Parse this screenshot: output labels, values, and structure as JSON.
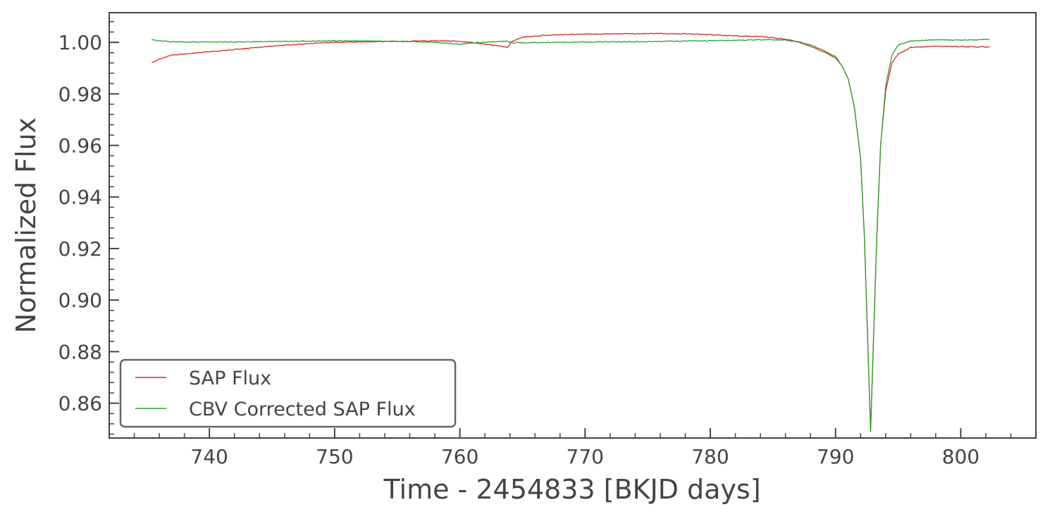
{
  "chart_data": {
    "type": "line",
    "title": "",
    "xlabel": "Time - 2454833 [BKJD days]",
    "ylabel": "Normalized Flux",
    "xlim": [
      732,
      806
    ],
    "ylim": [
      0.8465,
      1.0115
    ],
    "x_ticks": [
      740,
      750,
      760,
      770,
      780,
      790,
      800
    ],
    "x_tick_labels": [
      "740",
      "750",
      "760",
      "770",
      "780",
      "790",
      "800"
    ],
    "y_ticks": [
      0.86,
      0.88,
      0.9,
      0.92,
      0.94,
      0.96,
      0.98,
      1.0
    ],
    "y_tick_labels": [
      "0.86",
      "0.88",
      "0.90",
      "0.92",
      "0.94",
      "0.96",
      "0.98",
      "1.00"
    ],
    "grid": false,
    "legend_position": "lower-left",
    "series": [
      {
        "name": "SAP Flux",
        "color": "#d62728",
        "x": [
          735.4,
          736.0,
          737.0,
          738.0,
          740.0,
          742.0,
          745.0,
          748.0,
          750.0,
          752.0,
          754.0,
          756.0,
          758.0,
          760.0,
          761.0,
          762.0,
          763.0,
          763.8,
          764.2,
          765.0,
          767.0,
          770.0,
          773.0,
          776.0,
          779.0,
          782.0,
          784.0,
          785.0,
          786.0,
          787.0,
          788.0,
          789.0,
          790.0,
          790.5,
          791.0,
          791.5,
          792.0,
          792.3,
          792.6,
          792.8,
          793.0,
          793.3,
          793.6,
          794.0,
          794.5,
          795.0,
          796.0,
          798.0,
          800.0,
          802.3
        ],
        "y": [
          0.992,
          0.9935,
          0.995,
          0.9955,
          0.9963,
          0.9972,
          0.9985,
          0.9995,
          1.0,
          1.0002,
          1.0003,
          1.0004,
          1.0006,
          1.0004,
          1.0,
          0.9993,
          0.9987,
          0.998,
          1.0005,
          1.002,
          1.0028,
          1.0032,
          1.0033,
          1.0034,
          1.0032,
          1.0025,
          1.0022,
          1.0018,
          1.0012,
          1.0002,
          0.9985,
          0.9965,
          0.994,
          0.991,
          0.986,
          0.975,
          0.955,
          0.925,
          0.88,
          0.849,
          0.88,
          0.925,
          0.96,
          0.981,
          0.992,
          0.9955,
          0.998,
          0.9985,
          0.9983,
          0.9982
        ]
      },
      {
        "name": "CBV Corrected SAP Flux",
        "color": "#2ca02c",
        "x": [
          735.4,
          736.0,
          737.0,
          740.0,
          743.0,
          746.0,
          750.0,
          753.0,
          756.0,
          758.0,
          760.0,
          761.0,
          763.0,
          763.8,
          764.2,
          766.0,
          770.0,
          775.0,
          780.0,
          784.0,
          785.0,
          786.0,
          787.0,
          788.0,
          789.0,
          790.0,
          790.5,
          791.0,
          791.5,
          792.0,
          792.3,
          792.6,
          792.8,
          793.0,
          793.3,
          793.6,
          794.0,
          794.5,
          795.0,
          796.0,
          798.0,
          800.0,
          802.3
        ],
        "y": [
          1.001,
          1.0005,
          1.0002,
          1.0001,
          1.0002,
          1.0004,
          1.0006,
          1.0005,
          1.0003,
          1.0,
          0.9993,
          0.9998,
          1.0003,
          1.0005,
          0.9998,
          0.9999,
          1.0001,
          1.0003,
          1.0006,
          1.001,
          1.001,
          1.0008,
          1.0003,
          0.999,
          0.997,
          0.9945,
          0.991,
          0.986,
          0.975,
          0.955,
          0.925,
          0.88,
          0.849,
          0.88,
          0.925,
          0.96,
          0.983,
          0.995,
          0.999,
          1.0005,
          1.001,
          1.0008,
          1.0012
        ]
      }
    ]
  }
}
